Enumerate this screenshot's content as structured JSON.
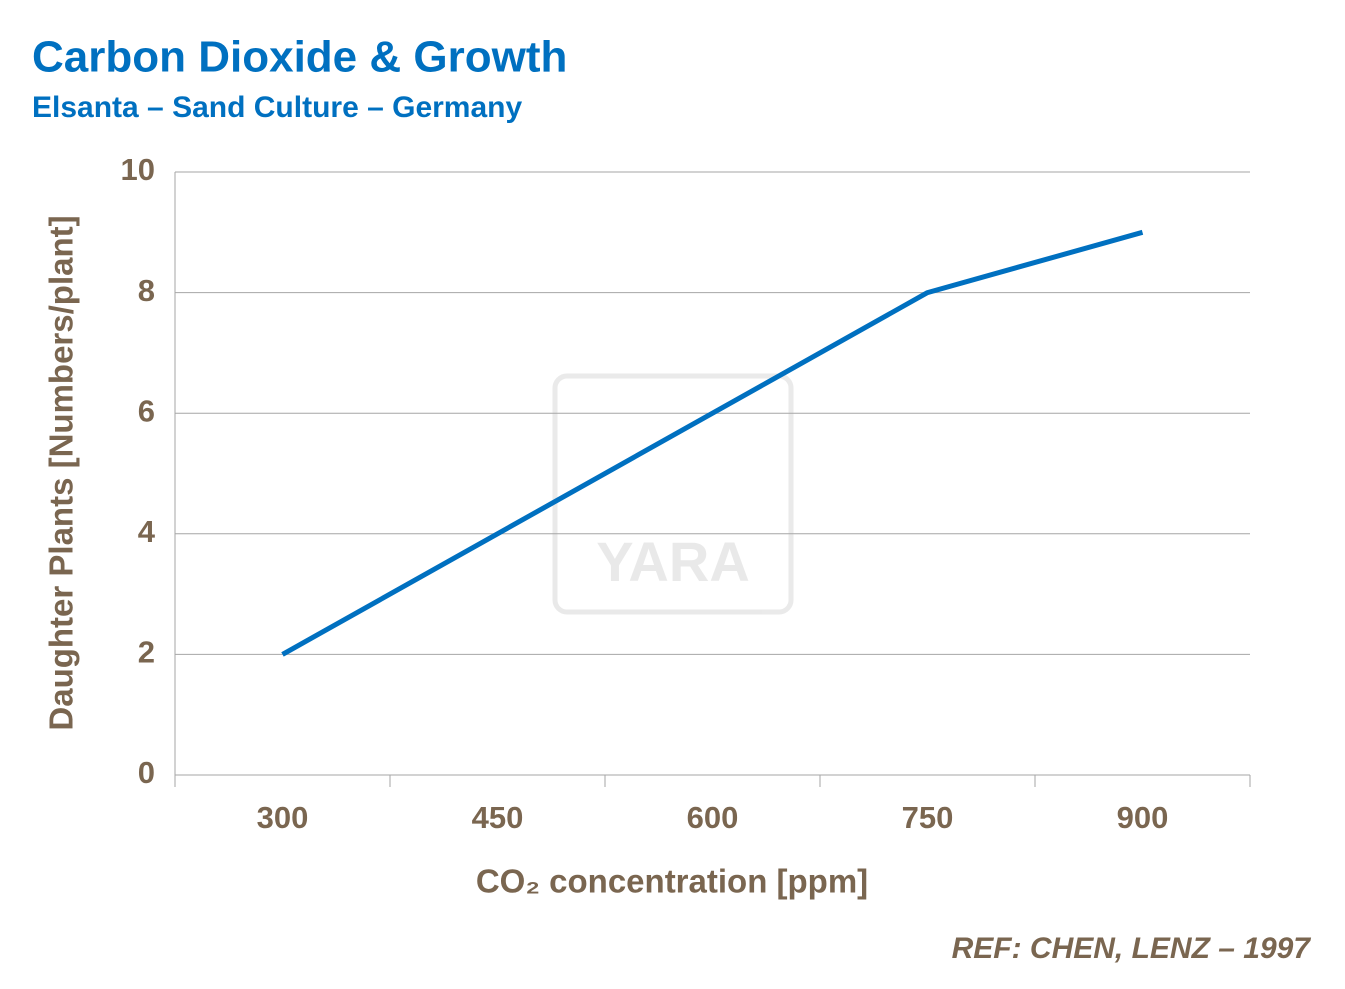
{
  "chart_data": {
    "type": "line",
    "title": "Carbon Dioxide & Growth",
    "subtitle": "Elsanta – Sand Culture – Germany",
    "x_label": "CO₂ concentration [ppm]",
    "y_label": "Daughter Plants [Numbers/plant]",
    "categories": [
      "300",
      "450",
      "600",
      "750",
      "900"
    ],
    "series": [
      {
        "name": "Daughter Plants",
        "color": "#0070c0",
        "values": [
          2,
          4,
          6,
          8,
          9
        ]
      }
    ],
    "ylim": [
      0,
      10
    ],
    "yticks": [
      0,
      2,
      4,
      6,
      8,
      10
    ],
    "grid": true,
    "watermark": "YARA",
    "annotation": "REF: CHEN, LENZ – 1997"
  }
}
